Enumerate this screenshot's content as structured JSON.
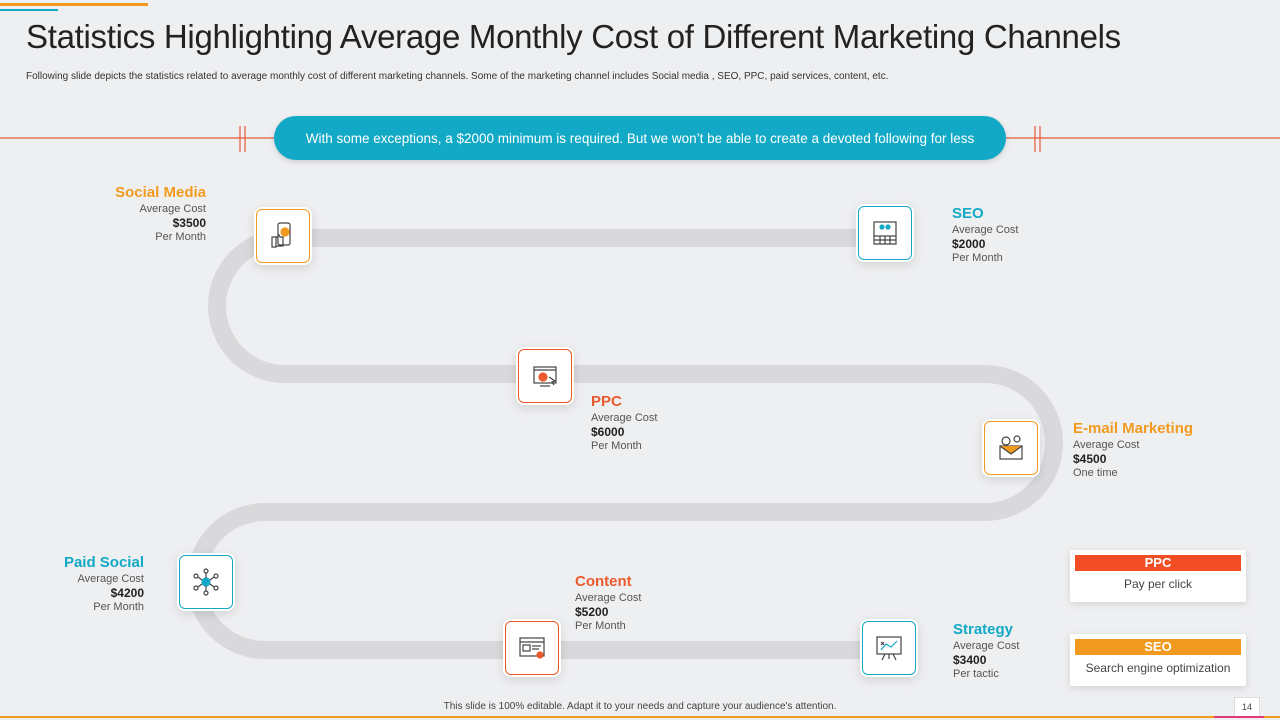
{
  "title": "Statistics Highlighting Average Monthly Cost of Different Marketing Channels",
  "subtitle": "Following slide depicts the statistics related to average monthly cost of different marketing channels. Some of the marketing channel includes Social media , SEO, PPC, paid services, content, etc.",
  "banner": "With some exceptions, a $2000 minimum is required. But we won’t be able to create a devoted following for less",
  "colors": {
    "orange": "#f29a1f",
    "teal": "#12a9c6",
    "red": "#ea5a2e",
    "ppc_badge": "#f24e25"
  },
  "channels": [
    {
      "name": "Social Media",
      "label": "Average Cost",
      "cost": "$3500",
      "period": "Per Month",
      "icon": "mobile-thumbs-up-icon"
    },
    {
      "name": "SEO",
      "label": "Average Cost",
      "cost": "$2000",
      "period": "Per Month",
      "icon": "seo-dashboard-icon"
    },
    {
      "name": "PPC",
      "label": "Average Cost",
      "cost": "$6000",
      "period": "Per Month",
      "icon": "click-browser-icon"
    },
    {
      "name": "E-mail Marketing",
      "label": "Average Cost",
      "cost": "$4500",
      "period": "One time",
      "icon": "email-envelope-icon"
    },
    {
      "name": "Paid Social",
      "label": "Average Cost",
      "cost": "$4200",
      "period": "Per Month",
      "icon": "network-hub-icon"
    },
    {
      "name": "Content",
      "label": "Average Cost",
      "cost": "$5200",
      "period": "Per Month",
      "icon": "content-window-icon"
    },
    {
      "name": "Strategy",
      "label": "Average Cost",
      "cost": "$3400",
      "period": "Per tactic",
      "icon": "strategy-board-icon"
    }
  ],
  "legend": [
    {
      "abbr": "PPC",
      "text": "Pay per click"
    },
    {
      "abbr": "SEO",
      "text": "Search engine optimization"
    }
  ],
  "footer": "This slide is 100% editable. Adapt it to your needs and capture your audience's attention.",
  "page_number": "14"
}
